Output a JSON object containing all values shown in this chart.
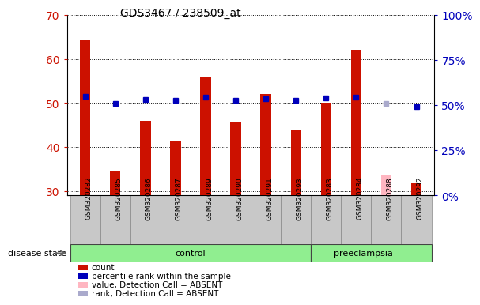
{
  "title": "GDS3467 / 238509_at",
  "samples": [
    "GSM320282",
    "GSM320285",
    "GSM320286",
    "GSM320287",
    "GSM320289",
    "GSM320290",
    "GSM320291",
    "GSM320293",
    "GSM320283",
    "GSM320284",
    "GSM320288",
    "GSM320292"
  ],
  "count_values": [
    64.5,
    34.5,
    46.0,
    41.5,
    56.0,
    45.5,
    52.0,
    44.0,
    50.0,
    62.0,
    null,
    32.0
  ],
  "count_absent": [
    null,
    null,
    null,
    null,
    null,
    null,
    null,
    null,
    null,
    null,
    33.5,
    null
  ],
  "rank_values": [
    55.0,
    51.0,
    53.0,
    52.5,
    54.5,
    52.5,
    53.5,
    52.5,
    54.0,
    54.5,
    null,
    49.0
  ],
  "rank_absent": [
    null,
    null,
    null,
    null,
    null,
    null,
    null,
    null,
    null,
    null,
    51.0,
    null
  ],
  "ylim_left": [
    29,
    70
  ],
  "ylim_right": [
    0,
    100
  ],
  "yticks_left": [
    30,
    40,
    50,
    60,
    70
  ],
  "yticks_right": [
    0,
    25,
    50,
    75,
    100
  ],
  "ytick_labels_right": [
    "0%",
    "25%",
    "50%",
    "75%",
    "100%"
  ],
  "bar_color_red": "#CC1100",
  "bar_color_pink": "#FFB6C1",
  "dot_color_blue": "#0000BB",
  "dot_color_lightblue": "#AAAACC",
  "plot_bg_color": "#FFFFFF",
  "xtick_bg_color": "#C8C8C8",
  "ylabel_left_color": "#CC1100",
  "ylabel_right_color": "#0000BB",
  "disease_state_label": "disease state",
  "control_label": "control",
  "preeclampsia_label": "preeclampsia",
  "control_color": "#90EE90",
  "preeclampsia_color": "#90EE90",
  "legend_items": [
    {
      "label": "count",
      "color": "#CC1100"
    },
    {
      "label": "percentile rank within the sample",
      "color": "#0000BB"
    },
    {
      "label": "value, Detection Call = ABSENT",
      "color": "#FFB6C1"
    },
    {
      "label": "rank, Detection Call = ABSENT",
      "color": "#AAAACC"
    }
  ],
  "n_control": 8,
  "n_total": 12
}
